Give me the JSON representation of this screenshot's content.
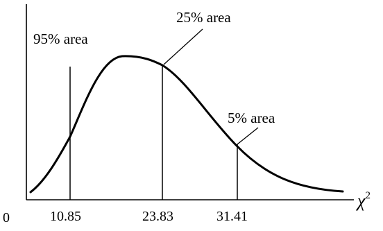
{
  "diagram": {
    "axis": {
      "origin_label": "0",
      "x_symbol": "χ",
      "x_superscript": "2"
    },
    "markers": [
      {
        "id": "m1",
        "tick_label": "10.85",
        "annotation": "95% area"
      },
      {
        "id": "m2",
        "tick_label": "23.83",
        "annotation": "25% area"
      },
      {
        "id": "m3",
        "tick_label": "31.41",
        "annotation": "5% area"
      }
    ],
    "colors": {
      "stroke": "#000000",
      "background": "#ffffff"
    }
  }
}
